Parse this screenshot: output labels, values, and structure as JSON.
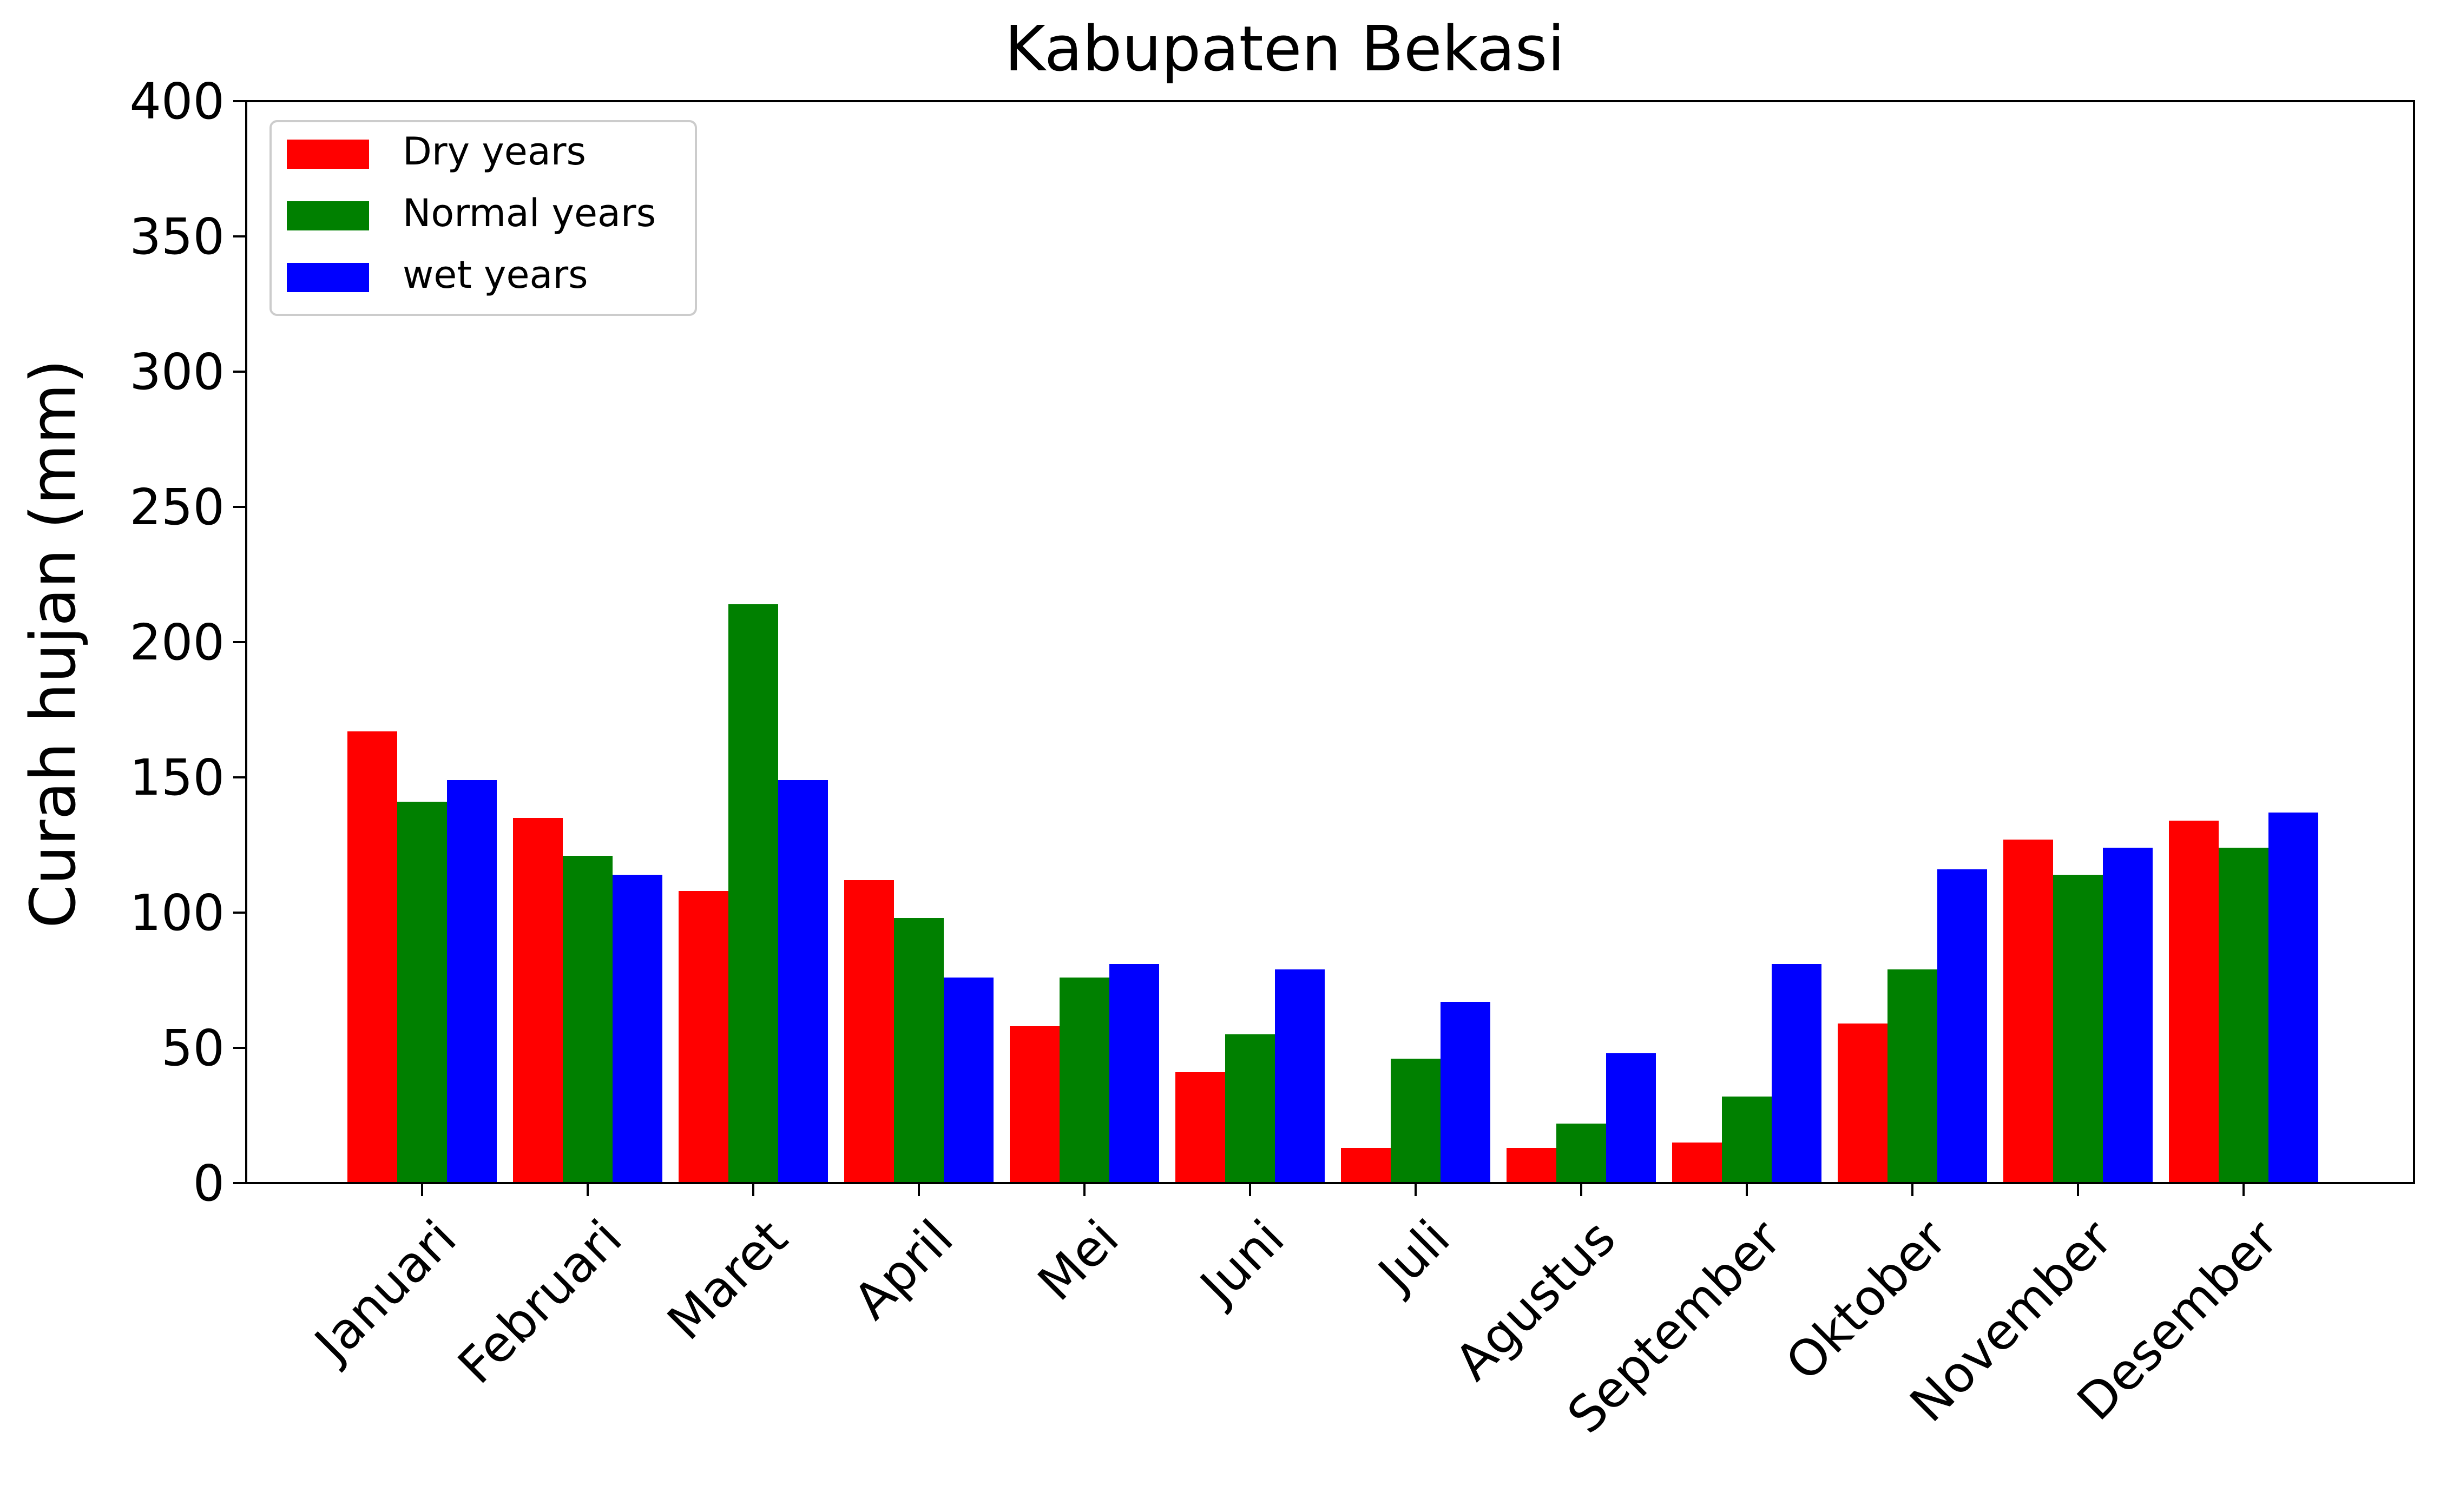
{
  "chart_data": {
    "type": "bar",
    "title": "Kabupaten Bekasi",
    "xlabel": "",
    "ylabel": "Curah hujan (mm)",
    "ylim": [
      0,
      400
    ],
    "yticks": [
      "0",
      "50",
      "100",
      "150",
      "200",
      "250",
      "300",
      "350",
      "400"
    ],
    "categories": [
      "Januari",
      "Februari",
      "Maret",
      "April",
      "Mei",
      "Juni",
      "Juli",
      "Agustus",
      "September",
      "Oktober",
      "November",
      "Desember"
    ],
    "series": [
      {
        "name": "Dry years",
        "color": "#ff0000",
        "values": [
          167,
          135,
          108,
          112,
          58,
          41,
          13,
          13,
          15,
          59,
          127,
          134
        ]
      },
      {
        "name": "Normal years",
        "color": "#008000",
        "values": [
          141,
          121,
          214,
          98,
          76,
          55,
          46,
          22,
          32,
          79,
          114,
          124
        ]
      },
      {
        "name": "wet years",
        "color": "#0000ff",
        "values": [
          149,
          114,
          149,
          76,
          81,
          79,
          67,
          48,
          81,
          116,
          124,
          137
        ]
      }
    ],
    "grid": false,
    "legend_position": "top-left"
  }
}
